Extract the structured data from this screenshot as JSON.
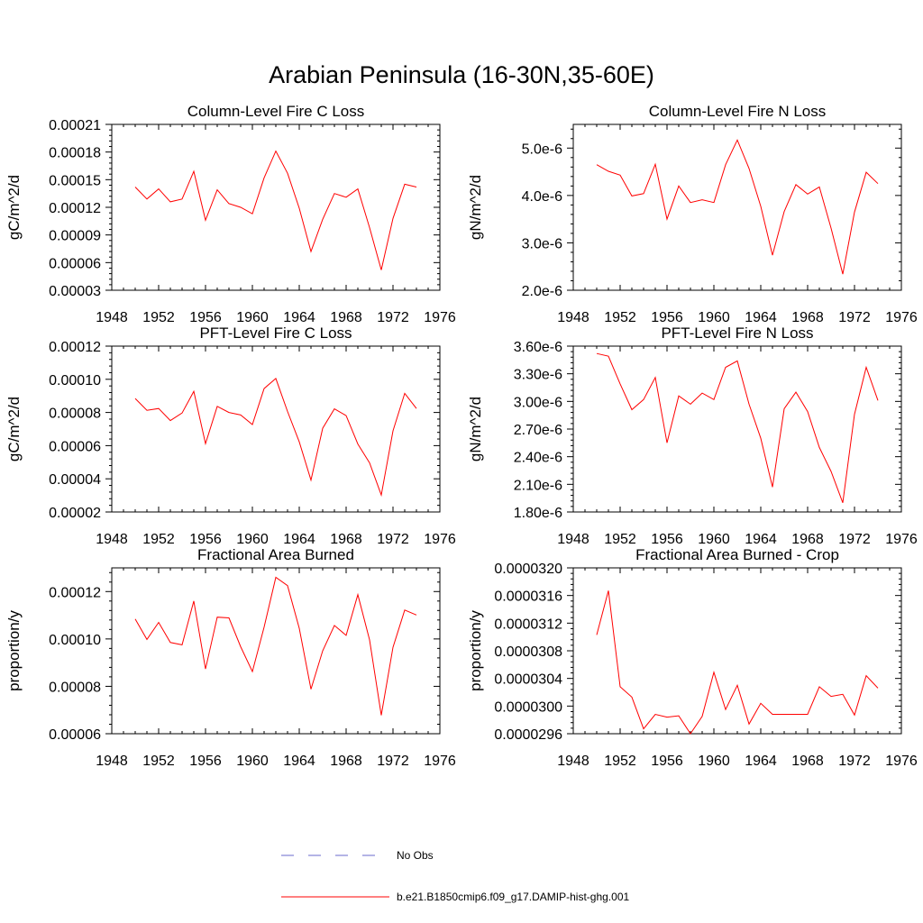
{
  "figure": {
    "title": "Arabian Peninsula (16-30N,35-60E)"
  },
  "legend": [
    {
      "label": "No Obs",
      "color": "#6a6acd",
      "dash": true
    },
    {
      "label": "b.e21.B1850cmip6.f09_g17.DAMIP-hist-ghg.001",
      "color": "#ff0000",
      "dash": false
    }
  ],
  "chart_data": [
    {
      "type": "line",
      "title": "Column-Level Fire C Loss",
      "ylabel": "gC/m^2/d",
      "xlim": [
        1948,
        1976
      ],
      "ylim": [
        3e-05,
        0.00021
      ],
      "xticks": [
        1948,
        1952,
        1956,
        1960,
        1964,
        1968,
        1972,
        1976
      ],
      "xtick_labels": [
        "1948",
        "1952",
        "1956",
        "1960",
        "1964",
        "1968",
        "1972",
        "1976"
      ],
      "yticks": [
        3e-05,
        6e-05,
        9e-05,
        0.00012,
        0.00015,
        0.00018,
        0.00021
      ],
      "ytick_labels": [
        "0.00003",
        "0.00006",
        "0.00009",
        "0.00012",
        "0.00015",
        "0.00018",
        "0.00021"
      ],
      "x": [
        1950,
        1951,
        1952,
        1953,
        1954,
        1955,
        1956,
        1957,
        1958,
        1959,
        1960,
        1961,
        1962,
        1963,
        1964,
        1965,
        1966,
        1967,
        1968,
        1969,
        1970,
        1971,
        1972,
        1973,
        1974
      ],
      "series": [
        {
          "color": "#ff0000",
          "values": [
            0.000142,
            0.000129,
            0.00014,
            0.000126,
            0.000129,
            0.000159,
            0.000106,
            0.000139,
            0.000124,
            0.00012,
            0.000113,
            0.000152,
            0.000181,
            0.000157,
            0.000119,
            7.2e-05,
            0.000107,
            0.000135,
            0.000131,
            0.00014,
            9.8e-05,
            5.2e-05,
            0.000108,
            0.000145,
            0.000142
          ]
        }
      ]
    },
    {
      "type": "line",
      "title": "Column-Level Fire N Loss",
      "ylabel": "gN/m^2/d",
      "xlim": [
        1948,
        1976
      ],
      "ylim": [
        2e-06,
        5.5e-06
      ],
      "xticks": [
        1948,
        1952,
        1956,
        1960,
        1964,
        1968,
        1972,
        1976
      ],
      "xtick_labels": [
        "1948",
        "1952",
        "1956",
        "1960",
        "1964",
        "1968",
        "1972",
        "1976"
      ],
      "yticks": [
        2e-06,
        3e-06,
        4e-06,
        5e-06
      ],
      "ytick_labels": [
        "2.0e-6",
        "3.0e-6",
        "4.0e-6",
        "5.0e-6"
      ],
      "x": [
        1950,
        1951,
        1952,
        1953,
        1954,
        1955,
        1956,
        1957,
        1958,
        1959,
        1960,
        1961,
        1962,
        1963,
        1964,
        1965,
        1966,
        1967,
        1968,
        1969,
        1970,
        1971,
        1972,
        1973,
        1974
      ],
      "series": [
        {
          "color": "#ff0000",
          "values": [
            4.65e-06,
            4.51e-06,
            4.43e-06,
            3.99e-06,
            4.04e-06,
            4.66e-06,
            3.5e-06,
            4.2e-06,
            3.85e-06,
            3.91e-06,
            3.85e-06,
            4.65e-06,
            5.17e-06,
            4.57e-06,
            3.77e-06,
            2.74e-06,
            3.66e-06,
            4.23e-06,
            4.03e-06,
            4.18e-06,
            3.31e-06,
            2.34e-06,
            3.65e-06,
            4.49e-06,
            4.25e-06
          ]
        }
      ]
    },
    {
      "type": "line",
      "title": "PFT-Level Fire C Loss",
      "ylabel": "gC/m^2/d",
      "xlim": [
        1948,
        1976
      ],
      "ylim": [
        2e-05,
        0.00012
      ],
      "xticks": [
        1948,
        1952,
        1956,
        1960,
        1964,
        1968,
        1972,
        1976
      ],
      "xtick_labels": [
        "1948",
        "1952",
        "1956",
        "1960",
        "1964",
        "1968",
        "1972",
        "1976"
      ],
      "yticks": [
        2e-05,
        4e-05,
        6e-05,
        8e-05,
        0.0001,
        0.00012
      ],
      "ytick_labels": [
        "0.00002",
        "0.00004",
        "0.00006",
        "0.00008",
        "0.00010",
        "0.00012"
      ],
      "x": [
        1950,
        1951,
        1952,
        1953,
        1954,
        1955,
        1956,
        1957,
        1958,
        1959,
        1960,
        1961,
        1962,
        1963,
        1964,
        1965,
        1966,
        1967,
        1968,
        1969,
        1970,
        1971,
        1972,
        1973,
        1974
      ],
      "series": [
        {
          "color": "#ff0000",
          "values": [
            8.84e-05,
            8.13e-05,
            8.24e-05,
            7.51e-05,
            7.97e-05,
            9.27e-05,
            6.12e-05,
            8.37e-05,
            8e-05,
            7.85e-05,
            7.27e-05,
            9.44e-05,
            0.0001005,
            8.06e-05,
            6.23e-05,
            3.92e-05,
            7.05e-05,
            8.22e-05,
            7.81e-05,
            6.1e-05,
            4.96e-05,
            3.02e-05,
            6.89e-05,
            9.15e-05,
            8.24e-05
          ]
        }
      ]
    },
    {
      "type": "line",
      "title": "PFT-Level Fire N Loss",
      "ylabel": "gN/m^2/d",
      "xlim": [
        1948,
        1976
      ],
      "ylim": [
        1.8e-06,
        3.6e-06
      ],
      "xticks": [
        1948,
        1952,
        1956,
        1960,
        1964,
        1968,
        1972,
        1976
      ],
      "xtick_labels": [
        "1948",
        "1952",
        "1956",
        "1960",
        "1964",
        "1968",
        "1972",
        "1976"
      ],
      "yticks": [
        1.8e-06,
        2.1e-06,
        2.4e-06,
        2.7e-06,
        3e-06,
        3.3e-06,
        3.6e-06
      ],
      "ytick_labels": [
        "1.80e-6",
        "2.10e-6",
        "2.40e-6",
        "2.70e-6",
        "3.00e-6",
        "3.30e-6",
        "3.60e-6"
      ],
      "x": [
        1950,
        1951,
        1952,
        1953,
        1954,
        1955,
        1956,
        1957,
        1958,
        1959,
        1960,
        1961,
        1962,
        1963,
        1964,
        1965,
        1966,
        1967,
        1968,
        1969,
        1970,
        1971,
        1972,
        1973,
        1974
      ],
      "series": [
        {
          "color": "#ff0000",
          "values": [
            3.52e-06,
            3.49e-06,
            3.19e-06,
            2.91e-06,
            3.02e-06,
            3.26e-06,
            2.55e-06,
            3.06e-06,
            2.97e-06,
            3.09e-06,
            3.02e-06,
            3.37e-06,
            3.44e-06,
            2.97e-06,
            2.6e-06,
            2.07e-06,
            2.92e-06,
            3.1e-06,
            2.89e-06,
            2.5e-06,
            2.24e-06,
            1.9e-06,
            2.86e-06,
            3.37e-06,
            3.01e-06
          ]
        }
      ]
    },
    {
      "type": "line",
      "title": "Fractional Area Burned",
      "ylabel": "proportion/y",
      "xlim": [
        1948,
        1976
      ],
      "ylim": [
        6e-05,
        0.00013
      ],
      "xticks": [
        1948,
        1952,
        1956,
        1960,
        1964,
        1968,
        1972,
        1976
      ],
      "xtick_labels": [
        "1948",
        "1952",
        "1956",
        "1960",
        "1964",
        "1968",
        "1972",
        "1976"
      ],
      "yticks": [
        6e-05,
        8e-05,
        0.0001,
        0.00012
      ],
      "ytick_labels": [
        "0.00006",
        "0.00008",
        "0.00010",
        "0.00012"
      ],
      "x": [
        1950,
        1951,
        1952,
        1953,
        1954,
        1955,
        1956,
        1957,
        1958,
        1959,
        1960,
        1961,
        1962,
        1963,
        1964,
        1965,
        1966,
        1967,
        1968,
        1969,
        1970,
        1971,
        1972,
        1973,
        1974
      ],
      "series": [
        {
          "color": "#ff0000",
          "values": [
            0.0001084,
            9.98e-05,
            0.000107,
            9.85e-05,
            9.75e-05,
            0.000116,
            8.73e-05,
            0.0001092,
            0.0001089,
            9.67e-05,
            8.62e-05,
            0.000105,
            0.000126,
            0.0001225,
            0.0001045,
            7.88e-05,
            9.5e-05,
            0.0001057,
            0.0001015,
            0.0001187,
            9.96e-05,
            6.78e-05,
            9.65e-05,
            0.0001122,
            0.0001101
          ]
        }
      ]
    },
    {
      "type": "line",
      "title": "Fractional Area Burned - Crop",
      "ylabel": "proportion/y",
      "xlim": [
        1948,
        1976
      ],
      "ylim": [
        2.96e-05,
        3.2e-05
      ],
      "xticks": [
        1948,
        1952,
        1956,
        1960,
        1964,
        1968,
        1972,
        1976
      ],
      "xtick_labels": [
        "1948",
        "1952",
        "1956",
        "1960",
        "1964",
        "1968",
        "1972",
        "1976"
      ],
      "yticks": [
        2.96e-05,
        3e-05,
        3.04e-05,
        3.08e-05,
        3.12e-05,
        3.16e-05,
        3.2e-05
      ],
      "ytick_labels": [
        "0.0000296",
        "0.0000300",
        "0.0000304",
        "0.0000308",
        "0.0000312",
        "0.0000316",
        "0.0000320"
      ],
      "x": [
        1950,
        1951,
        1952,
        1953,
        1954,
        1955,
        1956,
        1957,
        1958,
        1959,
        1960,
        1961,
        1962,
        1963,
        1964,
        1965,
        1966,
        1967,
        1968,
        1969,
        1970,
        1971,
        1972,
        1973,
        1974
      ],
      "series": [
        {
          "color": "#ff0000",
          "values": [
            3.103e-05,
            3.167e-05,
            3.028e-05,
            3.013e-05,
            2.967e-05,
            2.988e-05,
            2.984e-05,
            2.986e-05,
            2.96e-05,
            2.985e-05,
            3.049e-05,
            2.995e-05,
            3.03e-05,
            2.974e-05,
            3.004e-05,
            2.988e-05,
            2.988e-05,
            2.988e-05,
            2.988e-05,
            3.028e-05,
            3.014e-05,
            3.017e-05,
            2.987e-05,
            3.044e-05,
            3.026e-05
          ]
        }
      ]
    }
  ]
}
